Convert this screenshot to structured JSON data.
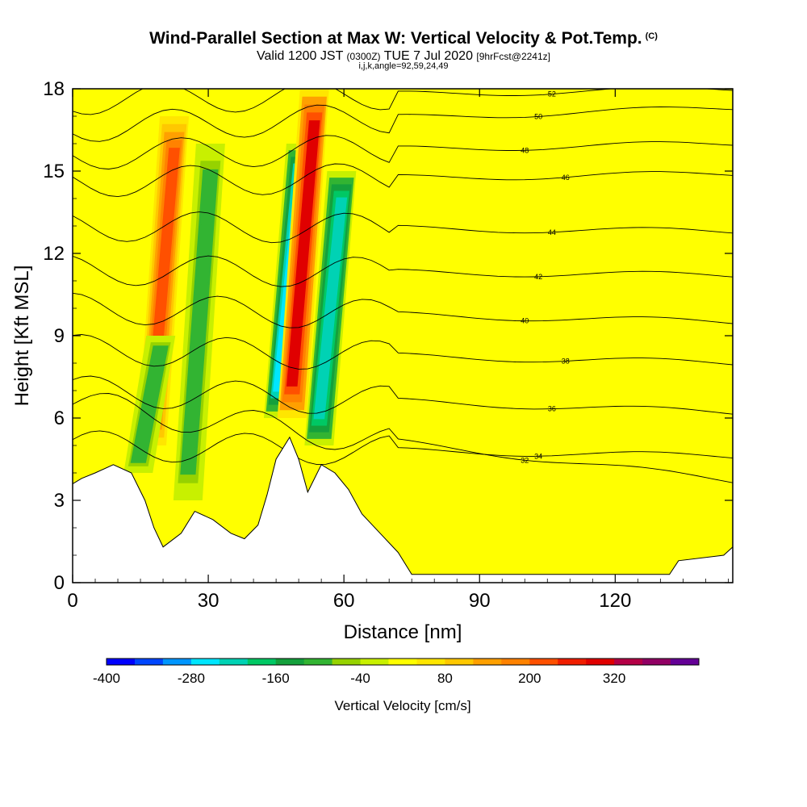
{
  "header": {
    "title": "Wind-Parallel Section at Max W: Vertical Velocity & Pot.Temp.",
    "copyright": "(C)",
    "valid_a": "Valid 1200 JST",
    "valid_b": "(0300Z)",
    "valid_c": "TUE 7 Jul 2020",
    "valid_d": "[9hrFcst@2241z]",
    "params": "i,j,k,angle=92,59,24,49"
  },
  "chart_data": {
    "type": "heatmap",
    "xlabel": "Distance [nm]",
    "ylabel": "Height [Kft MSL]",
    "xlim": [
      0,
      146
    ],
    "ylim": [
      0,
      18
    ],
    "x_ticks": [
      0,
      30,
      60,
      90,
      120
    ],
    "y_ticks": [
      0,
      3,
      6,
      9,
      12,
      15,
      18
    ],
    "colorbar": {
      "label": "Vertical Velocity [cm/s]",
      "min": -400,
      "step": 40,
      "tick_labels": [
        "-400",
        "-280",
        "-160",
        "-40",
        "80",
        "200",
        "320"
      ],
      "colors": [
        "#0000ff",
        "#0046ff",
        "#0096ff",
        "#00e6ff",
        "#00d2b4",
        "#00c864",
        "#14a03c",
        "#32b432",
        "#96d200",
        "#c8f000",
        "#ffff00",
        "#ffe600",
        "#ffc800",
        "#ffa000",
        "#ff8200",
        "#ff5000",
        "#f01e00",
        "#e00000",
        "#b40046",
        "#910064",
        "#640096"
      ]
    },
    "vertical_velocity_cores_cm_s": [
      {
        "x_nm": 20,
        "z_kft": [
          5,
          17
        ],
        "w": 200
      },
      {
        "x_nm": 17,
        "z_kft": [
          4,
          9
        ],
        "w": -120
      },
      {
        "x_nm": 28,
        "z_kft": [
          3,
          16
        ],
        "w": -120
      },
      {
        "x_nm": 48,
        "z_kft": [
          6,
          16
        ],
        "w": -280
      },
      {
        "x_nm": 51,
        "z_kft": [
          6,
          18
        ],
        "w": 280
      },
      {
        "x_nm": 57,
        "z_kft": [
          5,
          15
        ],
        "w": -240
      }
    ],
    "terrain_kft": [
      {
        "x": 0,
        "z": 3.6
      },
      {
        "x": 2,
        "z": 3.8
      },
      {
        "x": 5,
        "z": 4.0
      },
      {
        "x": 9,
        "z": 4.3
      },
      {
        "x": 13,
        "z": 4.0
      },
      {
        "x": 16,
        "z": 3.0
      },
      {
        "x": 18,
        "z": 2.0
      },
      {
        "x": 20,
        "z": 1.3
      },
      {
        "x": 24,
        "z": 1.8
      },
      {
        "x": 27,
        "z": 2.6
      },
      {
        "x": 31,
        "z": 2.3
      },
      {
        "x": 35,
        "z": 1.8
      },
      {
        "x": 38,
        "z": 1.6
      },
      {
        "x": 41,
        "z": 2.1
      },
      {
        "x": 43,
        "z": 3.2
      },
      {
        "x": 45,
        "z": 4.5
      },
      {
        "x": 48,
        "z": 5.3
      },
      {
        "x": 50,
        "z": 4.5
      },
      {
        "x": 52,
        "z": 3.3
      },
      {
        "x": 55,
        "z": 4.3
      },
      {
        "x": 58,
        "z": 4.0
      },
      {
        "x": 61,
        "z": 3.4
      },
      {
        "x": 64,
        "z": 2.5
      },
      {
        "x": 68,
        "z": 1.8
      },
      {
        "x": 72,
        "z": 1.1
      },
      {
        "x": 75,
        "z": 0.3
      },
      {
        "x": 132,
        "z": 0.3
      },
      {
        "x": 134,
        "z": 0.8
      },
      {
        "x": 144,
        "z": 1.0
      },
      {
        "x": 146,
        "z": 1.3
      }
    ],
    "theta_contours": [
      {
        "label": "32",
        "z": 6.5,
        "right": 3.7
      },
      {
        "label": "34",
        "z": 5.0,
        "right": 4.6
      },
      {
        "label": "36",
        "z": 7.0,
        "right": 6.2
      },
      {
        "label": "38",
        "z": 8.5,
        "right": 8.0
      },
      {
        "label": "40",
        "z": 10.0,
        "right": 9.5
      },
      {
        "label": "42",
        "z": 11.4,
        "right": 11.2
      },
      {
        "label": "44",
        "z": 13.0,
        "right": 12.8
      },
      {
        "label": "46",
        "z": 14.6,
        "right": 14.9
      },
      {
        "label": "48",
        "z": 15.6,
        "right": 16.0
      },
      {
        "label": "50",
        "z": 16.6,
        "right": 17.3
      },
      {
        "label": "52",
        "z": 17.6,
        "right": 18.0
      }
    ]
  }
}
